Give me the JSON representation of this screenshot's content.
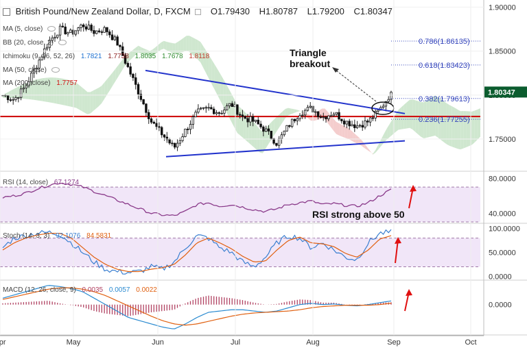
{
  "header": {
    "symbol_title": "British Pound/New Zealand Dollar, D, FXCM",
    "open": "O1.79430",
    "high": "H1.80787",
    "low": "L1.79200",
    "close": "C1.80347"
  },
  "indicators": {
    "ma5": {
      "label": "MA (5, close)"
    },
    "bb": {
      "label": "BB (20, close, 2)"
    },
    "ichimoku": {
      "label": "Ichimoku (9, 26, 52, 26)",
      "v1": "1.7821",
      "v2": "1.7738",
      "v3": "1.8035",
      "v4": "1.7678",
      "v5": "1.8118"
    },
    "ma50": {
      "label": "MA (50, close)"
    },
    "ma200": {
      "label": "MA (200, close)",
      "value": "1.7757"
    },
    "rsi": {
      "label": "RSI (14, close)",
      "value": "67.1274"
    },
    "stoch": {
      "label": "Stoch (14, 3, 3)",
      "k": "92.1076",
      "d": "84.5831"
    },
    "macd": {
      "label": "MACD (12, 26, close, 9)",
      "hist": "0.0035",
      "macd": "0.0057",
      "signal": "0.0022"
    }
  },
  "annotations": {
    "triangle": "Triangle\nbreakout",
    "rsi_note": "RSI strong above 50"
  },
  "colors": {
    "up": "#26a69a",
    "down": "#8b2020",
    "candle_body": "#1a1a1a",
    "ma200": "#d01010",
    "trendline": "#2233cc",
    "fib": "#3344bb",
    "cloud_red": "#f2c4c4",
    "cloud_green": "#c7e3c7",
    "rsi": "#8a3a8a",
    "stoch_k": "#3a7fd0",
    "stoch_d": "#e06010",
    "macd": "#2a8ad0",
    "signal": "#e06010",
    "hist": "#b04060",
    "arrow": "#e01010",
    "pane_band": "#efe3f7",
    "price_label": "#0b5c2e"
  },
  "chart_data": [
    {
      "type": "candlestick",
      "title": "British Pound/New Zealand Dollar, D, FXCM",
      "x_labels": [
        "Apr",
        "May",
        "Jun",
        "Jul",
        "Aug",
        "Sep",
        "Oct"
      ],
      "ylim": [
        1.715,
        1.905
      ],
      "y_ticks": [
        "1.90000",
        "1.85000",
        "1.80000",
        "1.75000"
      ],
      "last_price": "1.80347",
      "fibonacci": [
        {
          "label": "0.786(1.86135)",
          "value": 1.86135
        },
        {
          "label": "0.618(1.83423)",
          "value": 1.83423
        },
        {
          "label": "0.382(1.79613)",
          "value": 1.79613
        },
        {
          "label": "0.236(1.77255)",
          "value": 1.77255
        }
      ],
      "ma200_value": 1.7757,
      "triangle_upper": [
        [
          0.0,
          1.828
        ],
        [
          1.0,
          1.779
        ]
      ],
      "triangle_lower": [
        [
          0.0,
          1.73
        ],
        [
          1.0,
          1.748
        ]
      ],
      "close_path": [
        1.8,
        1.795,
        1.81,
        1.835,
        1.86,
        1.875,
        1.87,
        1.88,
        1.872,
        1.875,
        1.86,
        1.83,
        1.8,
        1.77,
        1.755,
        1.74,
        1.76,
        1.78,
        1.785,
        1.78,
        1.79,
        1.775,
        1.77,
        1.76,
        1.745,
        1.765,
        1.78,
        1.785,
        1.775,
        1.78,
        1.77,
        1.765,
        1.77,
        1.783,
        1.803
      ]
    },
    {
      "type": "line",
      "title": "RSI (14, close)",
      "ylim": [
        30,
        85
      ],
      "y_ticks": [
        "80.0000",
        "40.0000"
      ],
      "values": [
        58,
        60,
        63,
        68,
        72,
        75,
        73,
        70,
        65,
        60,
        55,
        50,
        45,
        40,
        38,
        37,
        42,
        50,
        52,
        48,
        50,
        47,
        44,
        42,
        45,
        50,
        52,
        54,
        50,
        51,
        49,
        48,
        52,
        60,
        67
      ]
    },
    {
      "type": "line",
      "title": "Stoch (14, 3, 3)",
      "ylim": [
        -5,
        108
      ],
      "y_ticks": [
        "100.0000",
        "50.0000",
        "0.0000"
      ],
      "series": [
        {
          "name": "K",
          "values": [
            60,
            80,
            85,
            90,
            92,
            88,
            70,
            50,
            30,
            15,
            10,
            8,
            10,
            20,
            15,
            30,
            60,
            85,
            80,
            60,
            50,
            30,
            20,
            40,
            70,
            85,
            80,
            60,
            70,
            55,
            40,
            35,
            70,
            90,
            92
          ]
        },
        {
          "name": "D",
          "values": [
            55,
            70,
            80,
            86,
            90,
            90,
            80,
            60,
            40,
            25,
            15,
            10,
            10,
            15,
            18,
            25,
            45,
            70,
            80,
            70,
            58,
            42,
            30,
            32,
            55,
            75,
            82,
            70,
            68,
            62,
            48,
            40,
            55,
            78,
            85
          ]
        }
      ]
    },
    {
      "type": "line",
      "title": "MACD (12, 26, close, 9)",
      "ylim": [
        -0.045,
        0.038
      ],
      "y_ticks": [
        "0.0000"
      ],
      "series": [
        {
          "name": "MACD",
          "values": [
            0.01,
            0.015,
            0.02,
            0.025,
            0.03,
            0.028,
            0.025,
            0.02,
            0.01,
            0.0,
            -0.01,
            -0.02,
            -0.025,
            -0.03,
            -0.035,
            -0.038,
            -0.03,
            -0.02,
            -0.012,
            -0.01,
            -0.008,
            -0.008,
            -0.01,
            -0.012,
            -0.01,
            -0.005,
            0.0,
            0.002,
            0.0,
            0.001,
            -0.001,
            -0.002,
            0.0,
            0.003,
            0.0057
          ]
        },
        {
          "name": "Signal",
          "values": [
            0.008,
            0.012,
            0.016,
            0.02,
            0.024,
            0.026,
            0.026,
            0.024,
            0.02,
            0.014,
            0.006,
            -0.002,
            -0.01,
            -0.018,
            -0.025,
            -0.03,
            -0.032,
            -0.03,
            -0.026,
            -0.022,
            -0.018,
            -0.015,
            -0.013,
            -0.012,
            -0.011,
            -0.01,
            -0.008,
            -0.005,
            -0.003,
            -0.002,
            -0.001,
            -0.001,
            -0.001,
            0.0,
            0.0022
          ]
        }
      ]
    }
  ]
}
